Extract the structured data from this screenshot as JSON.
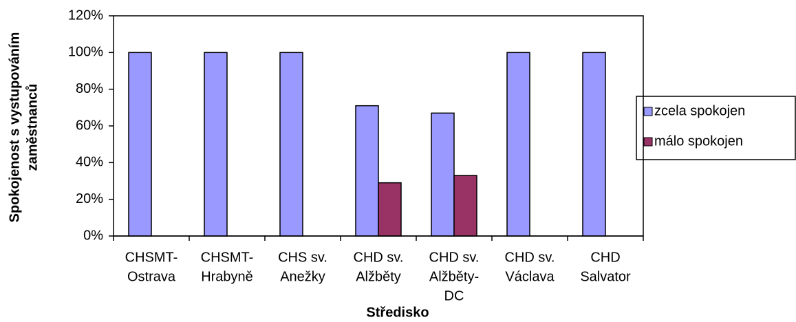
{
  "chart_data": {
    "type": "bar",
    "x_label": "Středisko",
    "y_label": [
      "Spokojenost s vystupováním",
      "zaměstnanců"
    ],
    "categories": [
      [
        "CHSMT-",
        "Ostrava"
      ],
      [
        "CHSMT-",
        "Hrabyně"
      ],
      [
        "CHS sv.",
        "Anežky"
      ],
      [
        "CHD sv.",
        "Alžběty"
      ],
      [
        "CHD sv.",
        "Alžběty-",
        "DC"
      ],
      [
        "CHD sv.",
        "Václava"
      ],
      [
        "CHD",
        "Salvator"
      ]
    ],
    "series": [
      {
        "name": "zcela spokojen",
        "color": "#9999ff",
        "values": [
          100,
          100,
          100,
          71,
          67,
          100,
          100
        ]
      },
      {
        "name": "málo spokojen",
        "color": "#993366",
        "values": [
          null,
          null,
          null,
          29,
          33,
          null,
          null
        ]
      }
    ],
    "ylim": [
      0,
      120
    ],
    "yticks": [
      {
        "value": 0,
        "label": "0%"
      },
      {
        "value": 20,
        "label": "20%"
      },
      {
        "value": 40,
        "label": "40%"
      },
      {
        "value": 60,
        "label": "60%"
      },
      {
        "value": 80,
        "label": "80%"
      },
      {
        "value": 100,
        "label": "100%"
      },
      {
        "value": 120,
        "label": "120%"
      }
    ],
    "grid": false,
    "legend": "right"
  }
}
